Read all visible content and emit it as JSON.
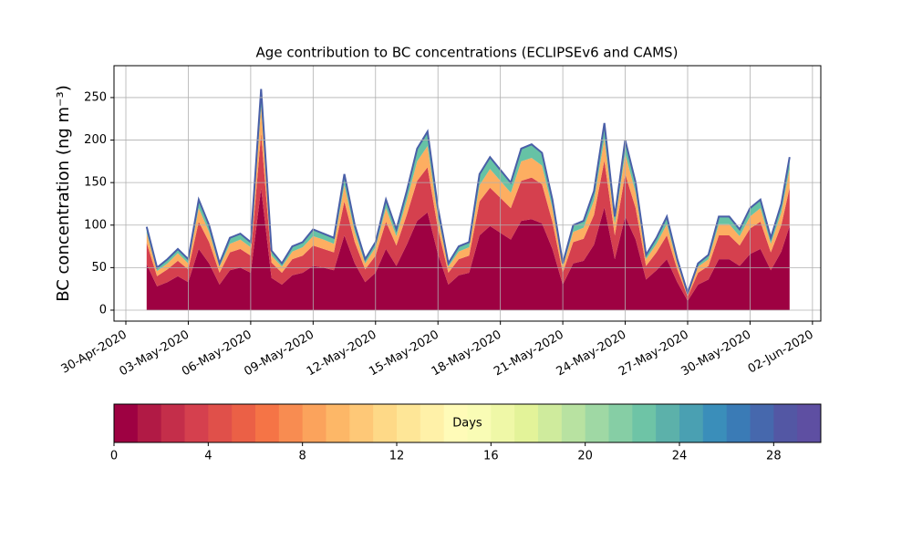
{
  "chart_data": {
    "type": "stacked_area",
    "title": "Age contribution to BC concentrations (ECLIPSEv6 and CAMS)",
    "ylabel": "BC concentration (ng m⁻³)",
    "x": [
      1,
      1.5,
      2,
      2.5,
      3,
      3.5,
      4,
      4.5,
      5,
      5.5,
      6,
      6.5,
      7,
      7.5,
      8,
      8.5,
      9,
      9.5,
      10,
      10.5,
      11,
      11.5,
      12,
      12.5,
      13,
      13.5,
      14,
      14.5,
      15,
      15.5,
      16,
      16.5,
      17,
      17.5,
      18,
      18.5,
      19,
      19.5,
      20,
      20.5,
      21,
      21.5,
      22,
      22.5,
      23,
      23.5,
      24,
      24.5,
      25,
      25.5,
      26,
      26.5,
      27,
      27.5,
      28,
      28.5,
      29,
      29.5,
      30,
      30.5,
      31,
      31.5,
      31.9
    ],
    "series": [
      {
        "color": "#9e0142",
        "values": [
          54,
          28,
          33,
          40,
          33,
          72,
          55,
          30,
          47,
          50,
          44,
          143,
          38,
          30,
          41,
          44,
          52,
          50,
          47,
          88,
          55,
          33,
          44,
          72,
          52,
          77,
          105,
          115,
          66,
          30,
          41,
          44,
          88,
          99,
          91,
          83,
          105,
          107,
          102,
          72,
          30,
          55,
          58,
          77,
          121,
          60,
          110,
          83,
          36,
          47,
          60,
          33,
          11,
          30,
          36,
          60,
          60,
          52,
          66,
          72,
          47,
          69,
          99
        ]
      },
      {
        "color": "#d5404e",
        "values": [
          25,
          12,
          15,
          18,
          15,
          32,
          25,
          14,
          21,
          22,
          20,
          65,
          18,
          14,
          19,
          20,
          24,
          22,
          21,
          40,
          25,
          15,
          20,
          32,
          24,
          35,
          47,
          53,
          30,
          14,
          19,
          20,
          40,
          45,
          41,
          37,
          47,
          49,
          46,
          32,
          14,
          25,
          26,
          35,
          55,
          28,
          50,
          37,
          16,
          21,
          28,
          15,
          5,
          14,
          16,
          28,
          28,
          24,
          30,
          32,
          21,
          31,
          45
        ]
      },
      {
        "color": "#fdae61",
        "values": [
          12,
          6,
          7,
          9,
          7,
          16,
          12,
          7,
          10,
          11,
          10,
          31,
          8,
          7,
          9,
          10,
          11,
          11,
          10,
          19,
          12,
          7,
          10,
          16,
          11,
          17,
          23,
          25,
          14,
          7,
          9,
          10,
          19,
          22,
          20,
          18,
          23,
          23,
          22,
          16,
          7,
          12,
          13,
          17,
          26,
          13,
          24,
          18,
          8,
          10,
          13,
          7,
          2,
          7,
          8,
          13,
          13,
          11,
          14,
          16,
          10,
          15,
          22
        ]
      },
      {
        "color": "#66c2a5",
        "values": [
          7,
          4,
          5,
          5,
          5,
          10,
          8,
          4,
          7,
          7,
          6,
          21,
          6,
          4,
          6,
          6,
          8,
          7,
          7,
          13,
          8,
          5,
          6,
          10,
          8,
          11,
          15,
          17,
          10,
          4,
          6,
          6,
          13,
          14,
          13,
          12,
          15,
          16,
          15,
          10,
          4,
          8,
          8,
          11,
          18,
          9,
          16,
          12,
          5,
          7,
          9,
          5,
          2,
          4,
          5,
          9,
          9,
          8,
          10,
          10,
          7,
          10,
          14
        ]
      }
    ],
    "line_color": "#4a5fa8",
    "xlim": [
      -0.57,
      33.4
    ],
    "xticks": [
      {
        "value": 0,
        "label": "30-Apr-2020"
      },
      {
        "value": 3,
        "label": "03-May-2020"
      },
      {
        "value": 6,
        "label": "06-May-2020"
      },
      {
        "value": 9,
        "label": "09-May-2020"
      },
      {
        "value": 12,
        "label": "12-May-2020"
      },
      {
        "value": 15,
        "label": "15-May-2020"
      },
      {
        "value": 18,
        "label": "18-May-2020"
      },
      {
        "value": 21,
        "label": "21-May-2020"
      },
      {
        "value": 24,
        "label": "24-May-2020"
      },
      {
        "value": 27,
        "label": "27-May-2020"
      },
      {
        "value": 30,
        "label": "30-May-2020"
      },
      {
        "value": 33,
        "label": "02-Jun-2020"
      }
    ],
    "ylim": [
      -12.9,
      287.5
    ],
    "yticks": [
      0,
      50,
      100,
      150,
      200,
      250
    ],
    "grid": true,
    "colorbar": {
      "label": "Days",
      "lim": [
        0,
        30
      ],
      "ticks": [
        0,
        4,
        8,
        12,
        16,
        20,
        24,
        28
      ],
      "colors": [
        "#9e0142",
        "#b11a45",
        "#c42e4a",
        "#d5404e",
        "#e0504a",
        "#eb6046",
        "#f57446",
        "#f88c51",
        "#fba35c",
        "#fdb767",
        "#fec877",
        "#fed987",
        "#fee697",
        "#fff1a8",
        "#fffbb8",
        "#f9fcb5",
        "#eff8a7",
        "#e3f399",
        "#cfeb9d",
        "#b8e2a1",
        "#9fd8a4",
        "#86cea5",
        "#6ec4a6",
        "#5cb1aa",
        "#4aa0b2",
        "#3a8eba",
        "#3a7bb6",
        "#4668ad",
        "#5357a4",
        "#5e4fa2"
      ]
    }
  }
}
